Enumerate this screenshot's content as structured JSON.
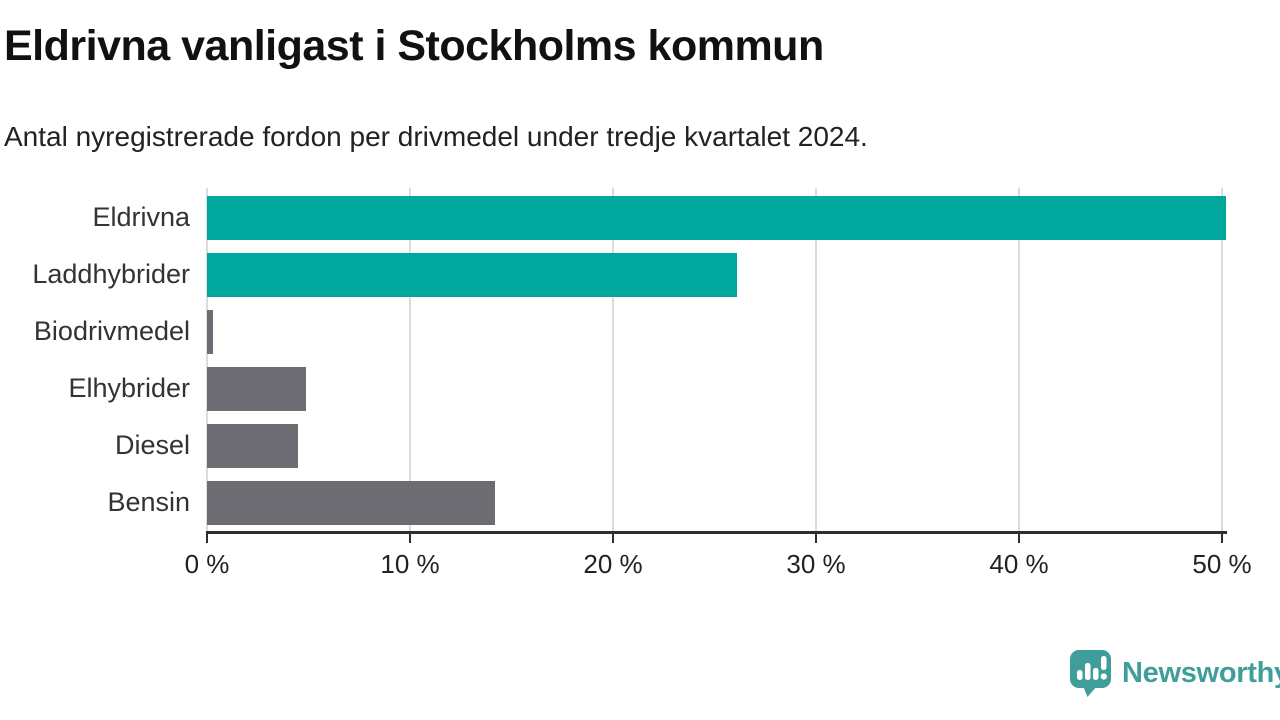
{
  "header": {
    "title": "Eldrivna vanligast i Stockholms kommun",
    "subtitle": "Antal nyregistrerade fordon per drivmedel under tredje kvartalet 2024."
  },
  "chart_data": {
    "type": "bar",
    "orientation": "horizontal",
    "title": "Eldrivna vanligast i Stockholms kommun",
    "subtitle": "Antal nyregistrerade fordon per drivmedel under tredje kvartalet 2024.",
    "categories": [
      "Eldrivna",
      "Laddhybrider",
      "Biodrivmedel",
      "Elhybrider",
      "Diesel",
      "Bensin"
    ],
    "values": [
      50.2,
      26.1,
      0.3,
      4.9,
      4.5,
      14.2
    ],
    "unit": "%",
    "bar_colors": [
      "#00a79c",
      "#00a79c",
      "#6c6c72",
      "#6c6c72",
      "#6c6c72",
      "#6c6c72"
    ],
    "xlabel": "",
    "ylabel": "",
    "xlim": [
      0,
      50
    ],
    "x_ticks": [
      0,
      10,
      20,
      30,
      40,
      50
    ],
    "x_tick_labels": [
      "0 %",
      "10 %",
      "20 %",
      "30 %",
      "40 %",
      "50 %"
    ],
    "grid": true,
    "legend": "none"
  },
  "branding": {
    "logo_text": "Newsworthy",
    "logo_icon": "newsworthy-chart-bubble-icon"
  },
  "colors": {
    "background": "#ffffff",
    "teal_accent": "#00a79c",
    "gray_bar": "#6c6c72",
    "gridline": "#dcdcdc",
    "axis": "#2e2e2e",
    "title_text": "#111111",
    "body_text": "#222222",
    "logo_teal": "#3f9e99"
  }
}
